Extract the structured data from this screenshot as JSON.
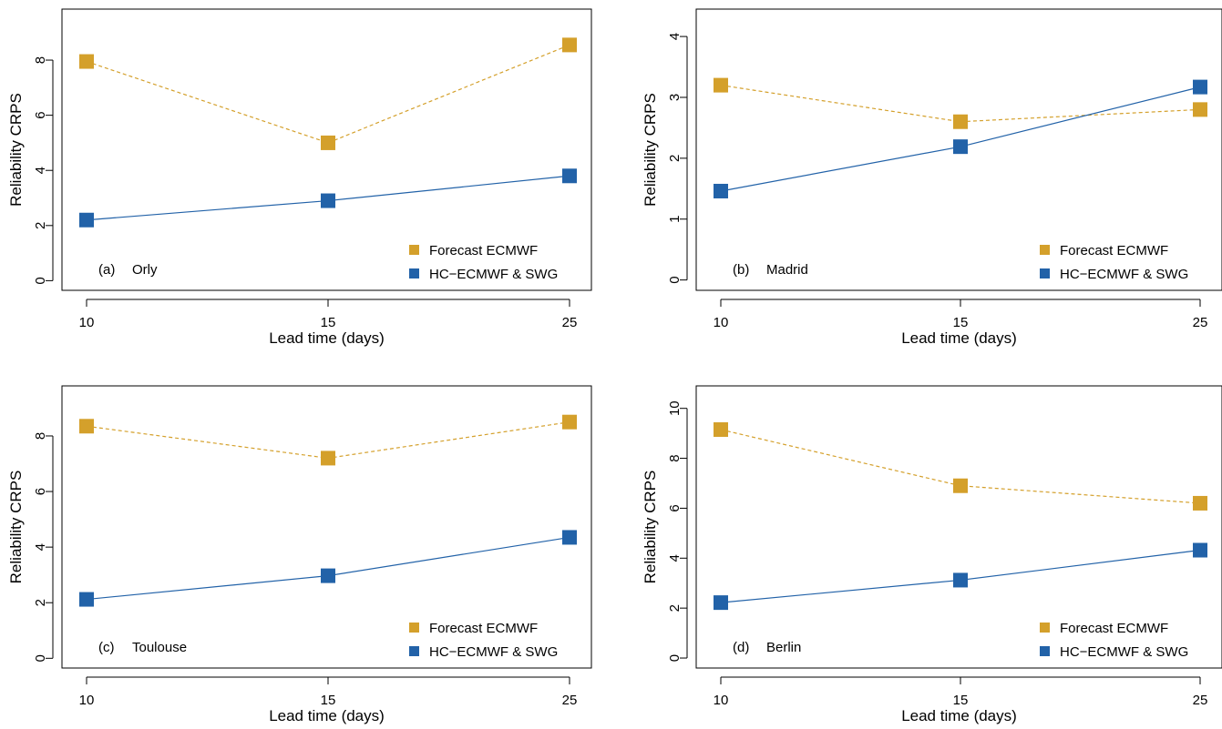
{
  "colors": {
    "forecast": "#D4A02B",
    "hindcast": "#2262A8",
    "axis": "#000000"
  },
  "chart_data": [
    {
      "type": "line",
      "panel_label": "(a)",
      "station": "Orly",
      "xlabel": "Lead time (days)",
      "ylabel": "Reliability CRPS",
      "x": [
        10,
        15,
        25
      ],
      "x_ticks": [
        "10",
        "15",
        "25"
      ],
      "y_ticks": [
        0,
        2,
        4,
        6,
        8
      ],
      "ylim": [
        -0.35,
        9.85
      ],
      "series": [
        {
          "name": "Forecast ECMWF",
          "values": [
            7.95,
            5.0,
            8.55
          ],
          "line": "dashed"
        },
        {
          "name": "HC−ECMWF & SWG",
          "values": [
            2.2,
            2.9,
            3.8
          ],
          "line": "solid"
        }
      ],
      "legend_position": "bottom-right"
    },
    {
      "type": "line",
      "panel_label": "(b)",
      "station": "Madrid",
      "xlabel": "Lead time (days)",
      "ylabel": "Reliability CRPS",
      "x": [
        10,
        15,
        25
      ],
      "x_ticks": [
        "10",
        "15",
        "25"
      ],
      "y_ticks": [
        0,
        1,
        2,
        3,
        4
      ],
      "ylim": [
        -0.17,
        4.45
      ],
      "series": [
        {
          "name": "Forecast ECMWF",
          "values": [
            3.2,
            2.6,
            2.8
          ],
          "line": "dashed"
        },
        {
          "name": "HC−ECMWF & SWG",
          "values": [
            1.46,
            2.19,
            3.17
          ],
          "line": "solid"
        }
      ],
      "legend_position": "bottom-right"
    },
    {
      "type": "line",
      "panel_label": "(c)",
      "station": "Toulouse",
      "xlabel": "Lead time (days)",
      "ylabel": "Reliability CRPS",
      "x": [
        10,
        15,
        25
      ],
      "x_ticks": [
        "10",
        "15",
        "25"
      ],
      "y_ticks": [
        0,
        2,
        4,
        6,
        8
      ],
      "ylim": [
        -0.35,
        9.8
      ],
      "series": [
        {
          "name": "Forecast ECMWF",
          "values": [
            8.35,
            7.2,
            8.5
          ],
          "line": "dashed"
        },
        {
          "name": "HC−ECMWF & SWG",
          "values": [
            2.12,
            2.97,
            4.35
          ],
          "line": "solid"
        }
      ],
      "legend_position": "bottom-right"
    },
    {
      "type": "line",
      "panel_label": "(d)",
      "station": "Berlin",
      "xlabel": "Lead time (days)",
      "ylabel": "Reliability CRPS",
      "x": [
        10,
        15,
        25
      ],
      "x_ticks": [
        "10",
        "15",
        "25"
      ],
      "y_ticks": [
        0,
        2,
        4,
        6,
        8,
        10
      ],
      "ylim": [
        -0.4,
        10.9
      ],
      "series": [
        {
          "name": "Forecast ECMWF",
          "values": [
            9.15,
            6.9,
            6.2
          ],
          "line": "dashed"
        },
        {
          "name": "HC−ECMWF & SWG",
          "values": [
            2.22,
            3.12,
            4.32
          ],
          "line": "solid"
        }
      ],
      "legend_position": "bottom-right"
    }
  ]
}
